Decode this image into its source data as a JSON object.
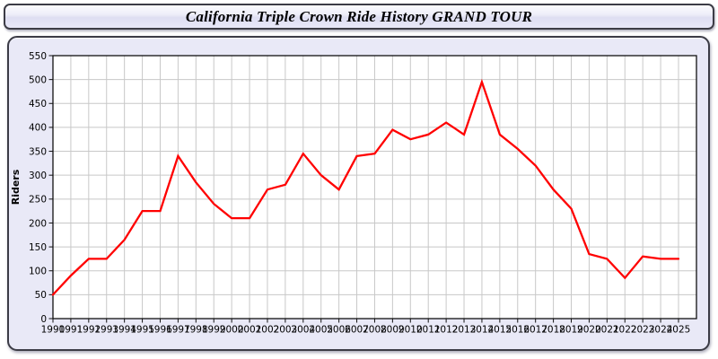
{
  "title": "California Triple Crown Ride History GRAND TOUR",
  "chart_data": {
    "type": "line",
    "title": "California Triple Crown Ride History GRAND TOUR",
    "xlabel": "",
    "ylabel": "Riders",
    "x": [
      1990,
      1991,
      1992,
      1993,
      1994,
      1995,
      1996,
      1997,
      1998,
      1999,
      2000,
      2001,
      2002,
      2003,
      2004,
      2005,
      2006,
      2007,
      2008,
      2009,
      2010,
      2011,
      2012,
      2013,
      2014,
      2015,
      2016,
      2017,
      2018,
      2019,
      2020,
      2021,
      2022,
      2023,
      2024,
      2025
    ],
    "series": [
      {
        "name": "Riders",
        "values": [
          50,
          90,
          125,
          125,
          165,
          225,
          225,
          340,
          285,
          240,
          210,
          210,
          270,
          280,
          345,
          300,
          270,
          340,
          345,
          395,
          375,
          385,
          410,
          385,
          495,
          385,
          355,
          320,
          270,
          230,
          135,
          125,
          85,
          130,
          125,
          125
        ]
      }
    ],
    "ylim": [
      0,
      550
    ],
    "ytick_step": 50,
    "grid": true,
    "legend_position": "none"
  },
  "colors": {
    "line": "#ff0000",
    "plot_background": "#ffffff",
    "panel_background": "#e9e9f7",
    "grid": "#c8c8c8",
    "axis": "#111111",
    "text": "#000000",
    "border": "#3c3c46"
  }
}
